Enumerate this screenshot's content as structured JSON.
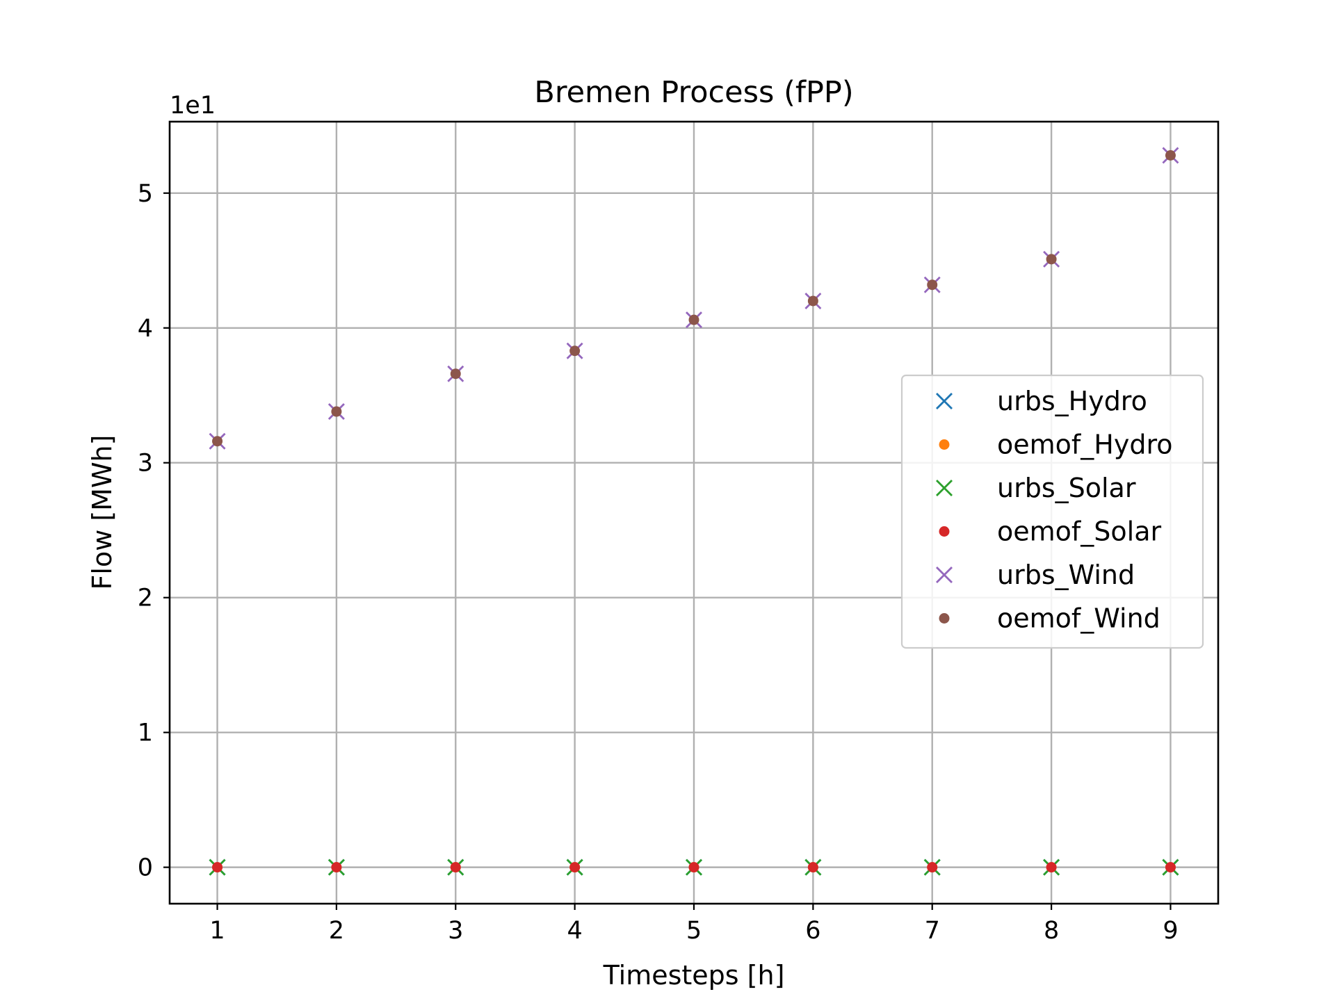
{
  "chart_data": {
    "type": "scatter",
    "title": "Bremen Process (fPP)",
    "xlabel": "Timesteps [h]",
    "ylabel": "Flow [MWh]",
    "y_offset_label": "1e1",
    "x": [
      1,
      2,
      3,
      4,
      5,
      6,
      7,
      8,
      9
    ],
    "xticks": [
      1,
      2,
      3,
      4,
      5,
      6,
      7,
      8,
      9
    ],
    "yticks": [
      0,
      1,
      2,
      3,
      4,
      5
    ],
    "ytick_labels": [
      "0",
      "1",
      "2",
      "3",
      "4",
      "5"
    ],
    "xlim": [
      0.6,
      9.4
    ],
    "ylim": [
      -0.27,
      5.53
    ],
    "y_scale": 10,
    "grid": true,
    "legend_position": "center-right",
    "series": [
      {
        "name": "urbs_Hydro",
        "marker": "x",
        "color": "#1f77b4",
        "values": [
          0,
          0,
          0,
          0,
          0,
          0,
          0,
          0,
          0
        ]
      },
      {
        "name": "oemof_Hydro",
        "marker": "dot",
        "color": "#ff7f0e",
        "values": [
          0,
          0,
          0,
          0,
          0,
          0,
          0,
          0,
          0
        ]
      },
      {
        "name": "urbs_Solar",
        "marker": "x",
        "color": "#2ca02c",
        "values": [
          0,
          0,
          0,
          0,
          0,
          0,
          0,
          0,
          0
        ]
      },
      {
        "name": "oemof_Solar",
        "marker": "dot",
        "color": "#d62728",
        "values": [
          0,
          0,
          0,
          0,
          0,
          0,
          0,
          0,
          0
        ]
      },
      {
        "name": "urbs_Wind",
        "marker": "x",
        "color": "#9467bd",
        "values": [
          31.6,
          33.8,
          36.6,
          38.3,
          40.6,
          42.0,
          43.2,
          45.1,
          52.8
        ]
      },
      {
        "name": "oemof_Wind",
        "marker": "dot",
        "color": "#8c564b",
        "values": [
          31.6,
          33.8,
          36.6,
          38.3,
          40.6,
          42.0,
          43.2,
          45.1,
          52.8
        ]
      }
    ]
  }
}
